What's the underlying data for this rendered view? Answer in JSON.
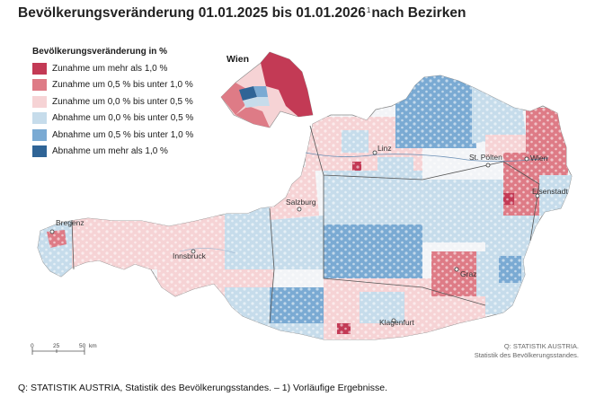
{
  "title": {
    "main": "Bevölkerungsveränderung 01.01.2025 bis 01.01.2026",
    "sup": "1",
    "suffix": "nach Bezirken"
  },
  "legend": {
    "title": "Bevölkerungsveränderung in %",
    "items": [
      {
        "label": "Zunahme um mehr als 1,0 %",
        "color": "#c33a55"
      },
      {
        "label": "Zunahme um 0,5 % bis unter 1,0 %",
        "color": "#de7b86"
      },
      {
        "label": "Zunahme um 0,0 % bis unter 0,5 %",
        "color": "#f6d3d5"
      },
      {
        "label": "Abnahme um 0,0 % bis unter 0,5 %",
        "color": "#c6dceb"
      },
      {
        "label": "Abnahme um 0,5 % bis unter 1,0 %",
        "color": "#7aaad3"
      },
      {
        "label": "Abnahme um mehr als 1,0 %",
        "color": "#2f6496"
      }
    ]
  },
  "inset_title": "Wien",
  "cities": [
    "Wien",
    "Linz",
    "St. Pölten",
    "Eisenstadt",
    "Salzburg",
    "Bregenz",
    "Innsbruck",
    "Graz",
    "Klagenfurt"
  ],
  "scale": {
    "ticks": [
      "0",
      "25",
      "50"
    ],
    "unit": "km"
  },
  "source_right": [
    "Q: STATISTIK AUSTRIA.",
    "Statistik des Bevölkerungsstandes."
  ],
  "footnote": "Q: STATISTIK AUSTRIA, Statistik des Bevölkerungsstandes. – 1) Vorläufige Ergebnisse."
}
